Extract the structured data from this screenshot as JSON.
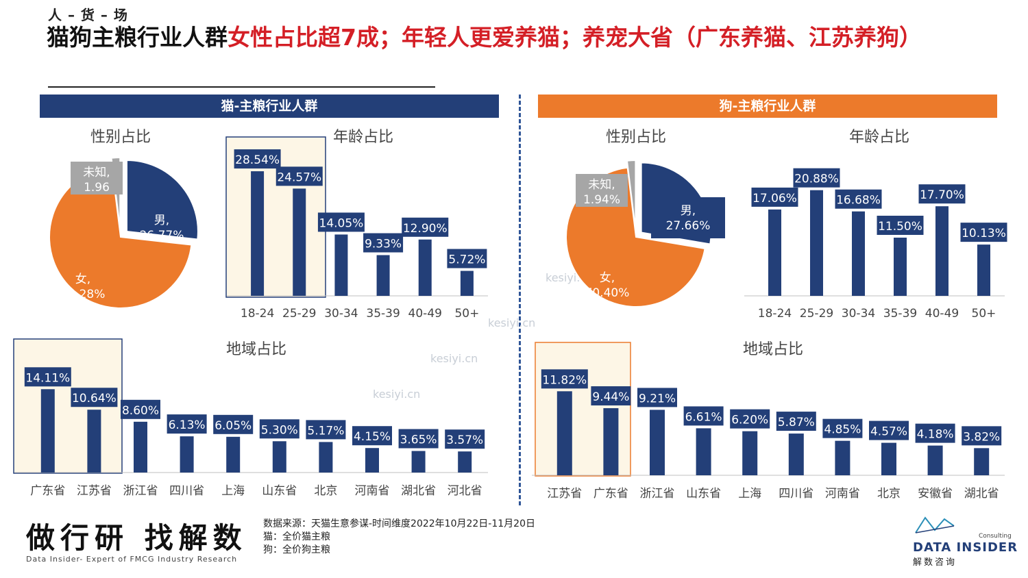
{
  "header": {
    "kicker": "人 – 货 – 场",
    "title_black_1": "猫狗主粮行业人群",
    "title_red_1": "女性占比超7成；年轻人更爱养猫；养宠大省（广东养猫、江苏养狗）"
  },
  "panels": {
    "cat": {
      "band": "猫-主粮行业人群"
    },
    "dog": {
      "band": "狗-主粮行业人群"
    }
  },
  "chart_data": [
    {
      "id": "cat-gender",
      "type": "pie",
      "title": "性别占比",
      "slices": [
        {
          "label": "男",
          "value_text": "男,\n26.77%",
          "value": 26.77,
          "color": "#233f78"
        },
        {
          "label": "女",
          "value_text": "女,\n71.28%",
          "value": 71.28,
          "color": "#ec7a2b"
        },
        {
          "label": "未知",
          "value_text": "未知,\n1.96",
          "value": 1.96,
          "color": "#a6a6a6"
        }
      ]
    },
    {
      "id": "cat-age",
      "type": "bar",
      "title": "年龄占比",
      "categories": [
        "18-24",
        "25-29",
        "30-34",
        "35-39",
        "40-49",
        "50+"
      ],
      "values": [
        28.54,
        24.57,
        14.05,
        9.33,
        12.9,
        5.72
      ],
      "labels": [
        "28.54%",
        "24.57%",
        "14.05%",
        "9.33%",
        "12.90%",
        "5.72%"
      ],
      "highlight": [
        0,
        1
      ],
      "ylim": [
        0,
        32
      ]
    },
    {
      "id": "cat-region",
      "type": "bar",
      "title": "地域占比",
      "categories": [
        "广东省",
        "江苏省",
        "浙江省",
        "四川省",
        "上海",
        "山东省",
        "北京",
        "河南省",
        "湖北省",
        "河北省"
      ],
      "values": [
        14.11,
        10.64,
        8.6,
        6.13,
        6.05,
        5.3,
        5.17,
        4.15,
        3.65,
        3.57
      ],
      "labels": [
        "14.11%",
        "10.64%",
        "8.60%",
        "6.13%",
        "6.05%",
        "5.30%",
        "5.17%",
        "4.15%",
        "3.65%",
        "3.57%"
      ],
      "highlight": [
        0,
        1
      ],
      "ylim": [
        0,
        16
      ]
    },
    {
      "id": "dog-gender",
      "type": "pie",
      "title": "性别占比",
      "slices": [
        {
          "label": "男",
          "value_text": "男,\n27.66%",
          "value": 27.66,
          "color": "#233f78"
        },
        {
          "label": "女",
          "value_text": "女,\n70.40%",
          "value": 70.4,
          "color": "#ec7a2b"
        },
        {
          "label": "未知",
          "value_text": "未知,\n1.94%",
          "value": 1.94,
          "color": "#a6a6a6"
        }
      ]
    },
    {
      "id": "dog-age",
      "type": "bar",
      "title": "年龄占比",
      "categories": [
        "18-24",
        "25-29",
        "30-34",
        "35-39",
        "40-49",
        "50+"
      ],
      "values": [
        17.06,
        20.88,
        16.68,
        11.5,
        17.7,
        10.13
      ],
      "labels": [
        "17.06%",
        "20.88%",
        "16.68%",
        "11.50%",
        "17.70%",
        "10.13%"
      ],
      "highlight": [],
      "ylim": [
        0,
        23
      ]
    },
    {
      "id": "dog-region",
      "type": "bar",
      "title": "地域占比",
      "categories": [
        "江苏省",
        "广东省",
        "浙江省",
        "山东省",
        "上海",
        "四川省",
        "河南省",
        "北京",
        "安徽省",
        "湖北省"
      ],
      "values": [
        11.82,
        9.44,
        9.21,
        6.61,
        6.2,
        5.87,
        4.85,
        4.57,
        4.18,
        3.82
      ],
      "labels": [
        "11.82%",
        "9.44%",
        "9.21%",
        "6.61%",
        "6.20%",
        "5.87%",
        "4.85%",
        "4.57%",
        "4.18%",
        "3.82%"
      ],
      "highlight": [
        0,
        1
      ],
      "ylim": [
        0,
        13.2
      ]
    }
  ],
  "footer": {
    "brand": "做行研 找解数",
    "brand_sub": "Data Insider- Expert of FMCG Industry Research",
    "source_line1": "数据来源：天猫生意参谋-时间维度2022年10月22日-11月20日",
    "source_line2": "猫：全价猫主粮",
    "source_line3": "狗：全价狗主粮",
    "logo_consulting": "Consulting",
    "logo_name": "DATA INSIDER",
    "logo_cn": "解数咨询"
  },
  "watermarks": [
    "kesiyi.cn",
    "kesiyi.cn",
    "kesiyi.cn",
    "kesiyi.cn",
    "kesiyi.cn",
    "kesiyi.cn"
  ],
  "colors": {
    "navy": "#233f78",
    "orange": "#ec7a2b",
    "grey": "#a6a6a6",
    "highlight_fill": "#fdf6e6",
    "title_red": "#d41f26"
  }
}
